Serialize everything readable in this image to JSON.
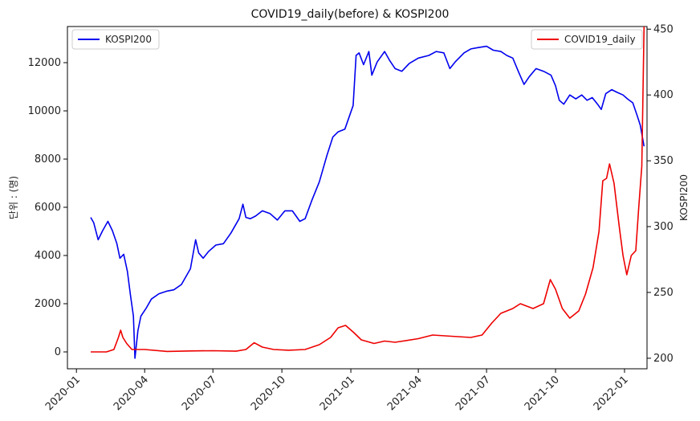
{
  "chart_data": {
    "type": "line",
    "title": "COVID19_daily(before) & KOSPI200",
    "ylabel_left": "단위 : (명)",
    "ylabel_right": "KOSPI200",
    "xlabel": "",
    "x_ticks": [
      "2020-01",
      "2020-04",
      "2020-07",
      "2020-10",
      "2021-01",
      "2021-04",
      "2021-07",
      "2021-10",
      "2022-01"
    ],
    "x_range": [
      "2019-12-20",
      "2022-01-31"
    ],
    "y_left_range": [
      -700,
      13500
    ],
    "y_left_ticks": [
      0,
      2000,
      4000,
      6000,
      8000,
      10000,
      12000
    ],
    "y_right_range": [
      192,
      452
    ],
    "y_right_ticks": [
      200,
      250,
      300,
      350,
      400,
      450
    ],
    "grid": false,
    "legend_placement": [
      "upper-left",
      "upper-right"
    ],
    "series": [
      {
        "name": "KOSPI200",
        "axis": "right",
        "color": "#0000ee",
        "points": [
          [
            "2020-01-20",
            307
          ],
          [
            "2020-01-24",
            303
          ],
          [
            "2020-01-30",
            290
          ],
          [
            "2020-02-05",
            297
          ],
          [
            "2020-02-12",
            304
          ],
          [
            "2020-02-18",
            297
          ],
          [
            "2020-02-24",
            287
          ],
          [
            "2020-02-28",
            276
          ],
          [
            "2020-03-04",
            279
          ],
          [
            "2020-03-09",
            266
          ],
          [
            "2020-03-13",
            248
          ],
          [
            "2020-03-17",
            232
          ],
          [
            "2020-03-19",
            200
          ],
          [
            "2020-03-23",
            221
          ],
          [
            "2020-03-27",
            232
          ],
          [
            "2020-04-03",
            238
          ],
          [
            "2020-04-10",
            245
          ],
          [
            "2020-04-20",
            249
          ],
          [
            "2020-05-01",
            251
          ],
          [
            "2020-05-10",
            252
          ],
          [
            "2020-05-20",
            256
          ],
          [
            "2020-06-01",
            268
          ],
          [
            "2020-06-08",
            290
          ],
          [
            "2020-06-12",
            280
          ],
          [
            "2020-06-18",
            276
          ],
          [
            "2020-06-25",
            281
          ],
          [
            "2020-07-05",
            286
          ],
          [
            "2020-07-15",
            287
          ],
          [
            "2020-07-25",
            295
          ],
          [
            "2020-08-05",
            306
          ],
          [
            "2020-08-10",
            317
          ],
          [
            "2020-08-14",
            307
          ],
          [
            "2020-08-20",
            306
          ],
          [
            "2020-08-27",
            308
          ],
          [
            "2020-09-05",
            312
          ],
          [
            "2020-09-15",
            310
          ],
          [
            "2020-09-25",
            305
          ],
          [
            "2020-10-05",
            312
          ],
          [
            "2020-10-15",
            312
          ],
          [
            "2020-10-25",
            304
          ],
          [
            "2020-11-01",
            306
          ],
          [
            "2020-11-10",
            320
          ],
          [
            "2020-11-20",
            334
          ],
          [
            "2020-11-30",
            354
          ],
          [
            "2020-12-08",
            368
          ],
          [
            "2020-12-15",
            372
          ],
          [
            "2020-12-24",
            374
          ],
          [
            "2021-01-04",
            392
          ],
          [
            "2021-01-08",
            430
          ],
          [
            "2021-01-12",
            432
          ],
          [
            "2021-01-18",
            423
          ],
          [
            "2021-01-25",
            433
          ],
          [
            "2021-01-29",
            415
          ],
          [
            "2021-02-05",
            425
          ],
          [
            "2021-02-15",
            433
          ],
          [
            "2021-02-22",
            426
          ],
          [
            "2021-03-01",
            420
          ],
          [
            "2021-03-10",
            418
          ],
          [
            "2021-03-20",
            424
          ],
          [
            "2021-04-01",
            428
          ],
          [
            "2021-04-15",
            430
          ],
          [
            "2021-04-25",
            433
          ],
          [
            "2021-05-05",
            432
          ],
          [
            "2021-05-13",
            420
          ],
          [
            "2021-05-20",
            425
          ],
          [
            "2021-06-01",
            432
          ],
          [
            "2021-06-10",
            435
          ],
          [
            "2021-06-20",
            436
          ],
          [
            "2021-07-01",
            437
          ],
          [
            "2021-07-10",
            434
          ],
          [
            "2021-07-20",
            433
          ],
          [
            "2021-07-28",
            430
          ],
          [
            "2021-08-05",
            428
          ],
          [
            "2021-08-13",
            417
          ],
          [
            "2021-08-20",
            408
          ],
          [
            "2021-08-27",
            414
          ],
          [
            "2021-09-05",
            420
          ],
          [
            "2021-09-15",
            418
          ],
          [
            "2021-09-25",
            415
          ],
          [
            "2021-10-01",
            407
          ],
          [
            "2021-10-06",
            396
          ],
          [
            "2021-10-12",
            393
          ],
          [
            "2021-10-20",
            400
          ],
          [
            "2021-10-28",
            397
          ],
          [
            "2021-11-05",
            400
          ],
          [
            "2021-11-12",
            396
          ],
          [
            "2021-11-19",
            398
          ],
          [
            "2021-11-26",
            393
          ],
          [
            "2021-12-01",
            389
          ],
          [
            "2021-12-07",
            401
          ],
          [
            "2021-12-15",
            404
          ],
          [
            "2021-12-22",
            402
          ],
          [
            "2021-12-30",
            400
          ],
          [
            "2022-01-05",
            397
          ],
          [
            "2022-01-12",
            394
          ],
          [
            "2022-01-18",
            384
          ],
          [
            "2022-01-22",
            377
          ],
          [
            "2022-01-27",
            361
          ]
        ]
      },
      {
        "name": "COVID19_daily",
        "axis": "left",
        "color": "#ee0000",
        "points": [
          [
            "2020-01-20",
            0
          ],
          [
            "2020-02-10",
            0
          ],
          [
            "2020-02-20",
            100
          ],
          [
            "2020-02-26",
            600
          ],
          [
            "2020-02-29",
            900
          ],
          [
            "2020-03-03",
            600
          ],
          [
            "2020-03-08",
            350
          ],
          [
            "2020-03-15",
            100
          ],
          [
            "2020-04-01",
            100
          ],
          [
            "2020-05-01",
            20
          ],
          [
            "2020-06-01",
            40
          ],
          [
            "2020-07-01",
            50
          ],
          [
            "2020-08-01",
            30
          ],
          [
            "2020-08-14",
            100
          ],
          [
            "2020-08-25",
            380
          ],
          [
            "2020-09-05",
            200
          ],
          [
            "2020-09-20",
            100
          ],
          [
            "2020-10-10",
            70
          ],
          [
            "2020-11-01",
            100
          ],
          [
            "2020-11-20",
            300
          ],
          [
            "2020-12-05",
            600
          ],
          [
            "2020-12-15",
            1000
          ],
          [
            "2020-12-25",
            1100
          ],
          [
            "2021-01-05",
            800
          ],
          [
            "2021-01-15",
            500
          ],
          [
            "2021-02-01",
            350
          ],
          [
            "2021-02-15",
            450
          ],
          [
            "2021-03-01",
            400
          ],
          [
            "2021-04-01",
            550
          ],
          [
            "2021-04-20",
            700
          ],
          [
            "2021-05-15",
            650
          ],
          [
            "2021-06-10",
            600
          ],
          [
            "2021-06-25",
            700
          ],
          [
            "2021-07-08",
            1200
          ],
          [
            "2021-07-20",
            1600
          ],
          [
            "2021-08-05",
            1800
          ],
          [
            "2021-08-15",
            2000
          ],
          [
            "2021-09-01",
            1800
          ],
          [
            "2021-09-15",
            2000
          ],
          [
            "2021-09-24",
            3000
          ],
          [
            "2021-10-01",
            2600
          ],
          [
            "2021-10-10",
            1800
          ],
          [
            "2021-10-20",
            1400
          ],
          [
            "2021-11-01",
            1700
          ],
          [
            "2021-11-10",
            2400
          ],
          [
            "2021-11-20",
            3500
          ],
          [
            "2021-11-28",
            5000
          ],
          [
            "2021-12-03",
            7100
          ],
          [
            "2021-12-08",
            7200
          ],
          [
            "2021-12-12",
            7800
          ],
          [
            "2021-12-18",
            7000
          ],
          [
            "2021-12-25",
            5200
          ],
          [
            "2021-12-30",
            4000
          ],
          [
            "2022-01-04",
            3200
          ],
          [
            "2022-01-10",
            4000
          ],
          [
            "2022-01-16",
            4200
          ],
          [
            "2022-01-20",
            6000
          ],
          [
            "2022-01-24",
            7700
          ],
          [
            "2022-01-27",
            13500
          ]
        ]
      }
    ]
  }
}
